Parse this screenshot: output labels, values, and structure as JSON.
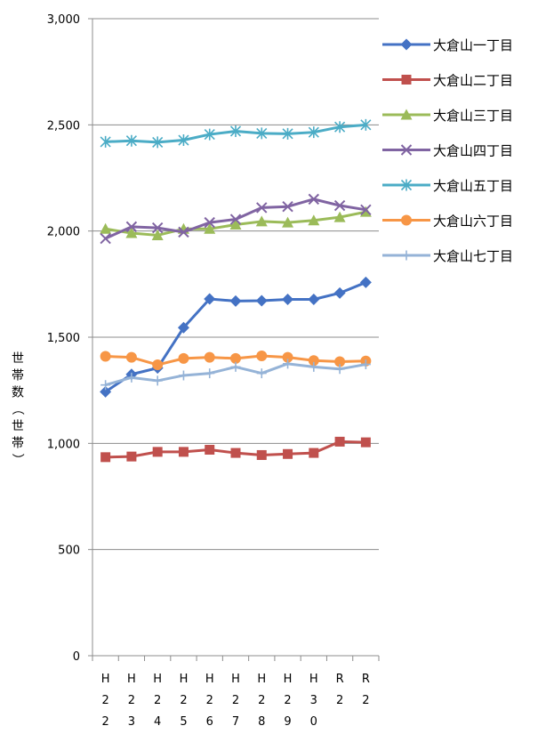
{
  "chart_data": {
    "type": "line",
    "title": "",
    "ylabel": "世帯数（世帯）",
    "ylim": [
      0,
      3000
    ],
    "yticks": [
      0,
      500,
      1000,
      1500,
      2000,
      2500,
      3000
    ],
    "ytick_labels": [
      "0",
      "500",
      "1,000",
      "1,500",
      "2,000",
      "2,500",
      "3,000"
    ],
    "grid": "horizontal",
    "legend_position": "right",
    "categories": [
      "H22",
      "H23",
      "H24",
      "H25",
      "H26",
      "H27",
      "H28",
      "H29",
      "H30",
      "R2",
      "R2"
    ],
    "category_labels": [
      [
        "H",
        "2",
        "2"
      ],
      [
        "H",
        "2",
        "3"
      ],
      [
        "H",
        "2",
        "4"
      ],
      [
        "H",
        "2",
        "5"
      ],
      [
        "H",
        "2",
        "6"
      ],
      [
        "H",
        "2",
        "7"
      ],
      [
        "H",
        "2",
        "8"
      ],
      [
        "H",
        "2",
        "9"
      ],
      [
        "H",
        "3",
        "0"
      ],
      [
        "R",
        "2"
      ],
      [
        "R",
        "2"
      ]
    ],
    "series": [
      {
        "name": "大倉山一丁目",
        "color": "#4472C4",
        "marker": "diamond",
        "values": [
          1243,
          1325,
          1355,
          1545,
          1680,
          1670,
          1672,
          1678,
          1678,
          1708,
          1758
        ]
      },
      {
        "name": "大倉山二丁目",
        "color": "#C0504D",
        "marker": "square",
        "values": [
          935,
          938,
          960,
          960,
          970,
          955,
          945,
          950,
          955,
          1008,
          1005
        ]
      },
      {
        "name": "大倉山三丁目",
        "color": "#9BBB59",
        "marker": "triangle",
        "values": [
          2010,
          1990,
          1980,
          2010,
          2010,
          2030,
          2045,
          2040,
          2050,
          2065,
          2090
        ]
      },
      {
        "name": "大倉山四丁目",
        "color": "#8064A2",
        "marker": "x",
        "values": [
          1965,
          2020,
          2015,
          1995,
          2040,
          2055,
          2110,
          2115,
          2150,
          2120,
          2100
        ]
      },
      {
        "name": "大倉山五丁目",
        "color": "#4BACC6",
        "marker": "star",
        "values": [
          2420,
          2425,
          2418,
          2428,
          2455,
          2470,
          2460,
          2458,
          2465,
          2490,
          2500
        ]
      },
      {
        "name": "大倉山六丁目",
        "color": "#F79646",
        "marker": "circle",
        "values": [
          1410,
          1405,
          1370,
          1400,
          1405,
          1400,
          1412,
          1405,
          1390,
          1385,
          1388
        ]
      },
      {
        "name": "大倉山七丁目",
        "color": "#95B3D7",
        "marker": "plus",
        "values": [
          1275,
          1310,
          1295,
          1320,
          1330,
          1360,
          1330,
          1375,
          1360,
          1350,
          1372
        ]
      }
    ]
  }
}
